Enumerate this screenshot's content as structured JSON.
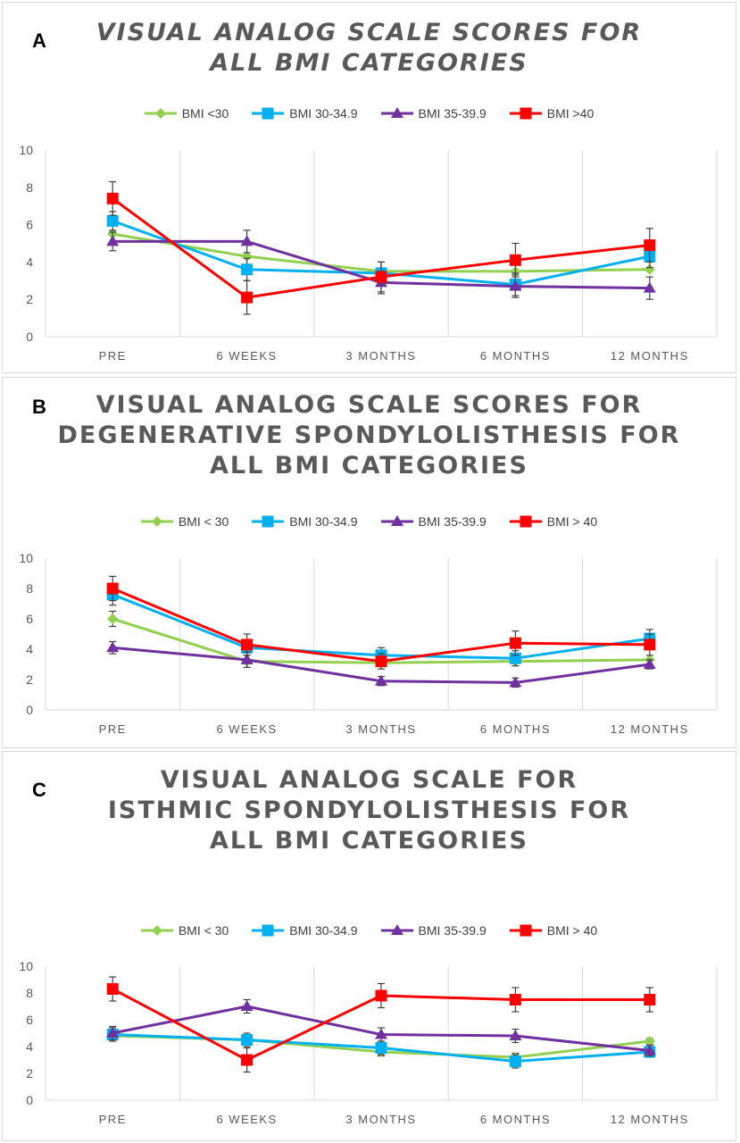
{
  "chart_data": [
    {
      "type": "line",
      "panel_label": "A",
      "title": "VISUAL ANALOG SCALE SCORES FOR ALL BMI CATEGORIES",
      "categories": [
        "PRE",
        "6 WEEKS",
        "3 MONTHS",
        "6 MONTHS",
        "12 MONTHS"
      ],
      "ylim": [
        0,
        10
      ],
      "yticks": [
        "0",
        "2",
        "4",
        "6",
        "8",
        "10"
      ],
      "grid": "vertical",
      "legend_position": "top",
      "series": [
        {
          "name": "BMI <30",
          "color": "#92d050",
          "marker": "diamond",
          "values": [
            5.5,
            4.3,
            3.5,
            3.5,
            3.6
          ],
          "error": [
            0.0,
            0.0,
            0.0,
            0.0,
            0.0
          ]
        },
        {
          "name": "BMI 30-34.9",
          "color": "#00b0f0",
          "marker": "square",
          "values": [
            6.2,
            3.6,
            3.4,
            2.8,
            4.3
          ],
          "error": [
            0.5,
            0.6,
            0.6,
            0.6,
            0.6
          ]
        },
        {
          "name": "BMI 35-39.9",
          "color": "#7030a0",
          "marker": "triangle",
          "values": [
            5.1,
            5.1,
            2.9,
            2.7,
            2.6
          ],
          "error": [
            0.5,
            0.6,
            0.6,
            0.6,
            0.6
          ]
        },
        {
          "name": "BMI >40",
          "color": "#ff0000",
          "marker": "square",
          "values": [
            7.4,
            2.1,
            3.2,
            4.1,
            4.9
          ],
          "error": [
            0.9,
            0.9,
            0.8,
            0.9,
            0.9
          ]
        }
      ]
    },
    {
      "type": "line",
      "panel_label": "B",
      "title": "VISUAL ANALOG SCALE SCORES FOR DEGENERATIVE SPONDYLOLISTHESIS FOR ALL BMI CATEGORIES",
      "categories": [
        "PRE",
        "6 WEEKS",
        "3 MONTHS",
        "6 MONTHS",
        "12 MONTHS"
      ],
      "ylim": [
        0,
        10
      ],
      "yticks": [
        "0",
        "2",
        "4",
        "6",
        "8",
        "10"
      ],
      "grid": "vertical",
      "legend_position": "top",
      "series": [
        {
          "name": "BMI < 30",
          "color": "#92d050",
          "marker": "diamond",
          "values": [
            6.0,
            3.2,
            3.1,
            3.2,
            3.3
          ],
          "error": [
            0.5,
            0.0,
            0.0,
            0.0,
            0.0
          ]
        },
        {
          "name": "BMI 30-34.9",
          "color": "#00b0f0",
          "marker": "square",
          "values": [
            7.6,
            4.1,
            3.6,
            3.4,
            4.7
          ],
          "error": [
            0.7,
            0.5,
            0.5,
            0.5,
            0.6
          ]
        },
        {
          "name": "BMI 35-39.9",
          "color": "#7030a0",
          "marker": "triangle",
          "values": [
            4.1,
            3.3,
            1.9,
            1.8,
            3.0
          ],
          "error": [
            0.4,
            0.5,
            0.3,
            0.3,
            0.3
          ]
        },
        {
          "name": "BMI > 40",
          "color": "#ff0000",
          "marker": "square",
          "values": [
            8.0,
            4.3,
            3.2,
            4.4,
            4.3
          ],
          "error": [
            0.8,
            0.7,
            0.5,
            0.8,
            0.7
          ]
        }
      ]
    },
    {
      "type": "line",
      "panel_label": "C",
      "title": "VISUAL ANALOG SCALE FOR ISTHMIC SPONDYLOLISTHESIS FOR ALL BMI CATEGORIES",
      "categories": [
        "PRE",
        "6 WEEKS",
        "3 MONTHS",
        "6 MONTHS",
        "12 MONTHS"
      ],
      "ylim": [
        0,
        10
      ],
      "yticks": [
        "0",
        "2",
        "4",
        "6",
        "8",
        "10"
      ],
      "grid": "vertical",
      "legend_position": "top",
      "series": [
        {
          "name": "BMI < 30",
          "color": "#92d050",
          "marker": "diamond",
          "values": [
            4.8,
            4.5,
            3.6,
            3.2,
            4.4
          ],
          "error": [
            0.0,
            0.0,
            0.3,
            0.3,
            0.2
          ]
        },
        {
          "name": "BMI 30-34.9",
          "color": "#00b0f0",
          "marker": "square",
          "values": [
            4.9,
            4.5,
            3.9,
            2.9,
            3.6
          ],
          "error": [
            0.5,
            0.5,
            0.5,
            0.5,
            0.4
          ]
        },
        {
          "name": "BMI 35-39.9",
          "color": "#7030a0",
          "marker": "triangle",
          "values": [
            5.0,
            7.0,
            4.9,
            4.8,
            3.7
          ],
          "error": [
            0.5,
            0.5,
            0.5,
            0.5,
            0.4
          ]
        },
        {
          "name": "BMI > 40",
          "color": "#ff0000",
          "marker": "square",
          "values": [
            8.3,
            3.0,
            7.8,
            7.5,
            7.5
          ],
          "error": [
            0.9,
            0.9,
            0.9,
            0.9,
            0.9
          ]
        }
      ]
    }
  ]
}
